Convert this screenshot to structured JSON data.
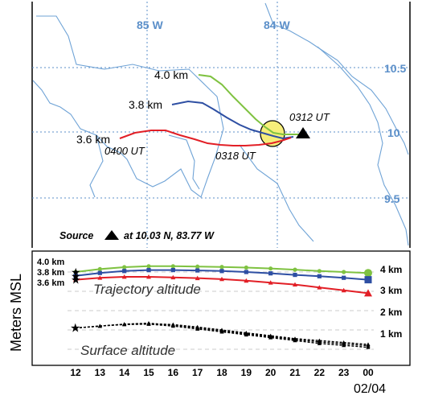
{
  "map": {
    "lon_labels": [
      "85 W",
      "84 W"
    ],
    "lat_labels": [
      "10.5",
      "10",
      "9.5"
    ],
    "trajectory_labels": {
      "green": "4.0 km",
      "blue": "3.8 km",
      "red": "3.6 km"
    },
    "time_labels": {
      "t0312": "0312 UT",
      "t0318": "0318 UT",
      "t0400": "0400 UT"
    },
    "source": {
      "prefix": "Source",
      "suffix": "at 10.03 N, 83.77 W",
      "marker_icon": "black-triangle"
    },
    "colors": {
      "green": "#7fc241",
      "blue": "#2e4fa3",
      "red": "#e21f26",
      "coast": "#6fa3d6",
      "grid": "#5b8fc9",
      "highlight": "#f6ee7a"
    }
  },
  "profile": {
    "y_axis_title": "Meters MSL",
    "trajectory_title": "Trajectory altitude",
    "surface_title": "Surface altitude",
    "left_labels": [
      "4.0 km",
      "3.8 km",
      "3.6 km"
    ],
    "right_labels": [
      "4 km",
      "3 km",
      "2 km",
      "1 km"
    ],
    "x_ticks": [
      "12",
      "13",
      "14",
      "15",
      "16",
      "17",
      "18",
      "19",
      "20",
      "21",
      "22",
      "23",
      "00"
    ],
    "date_label": "02/04"
  },
  "chart_data": {
    "type": "line",
    "x": [
      "12",
      "13",
      "14",
      "15",
      "16",
      "17",
      "18",
      "19",
      "20",
      "21",
      "22",
      "23",
      "00"
    ],
    "ylim": [
      0,
      4.5
    ],
    "series": [
      {
        "name": "4.0 km",
        "color": "#7fc241",
        "values": [
          4.0,
          4.15,
          4.25,
          4.3,
          4.3,
          4.28,
          4.26,
          4.23,
          4.18,
          4.12,
          4.05,
          4.0,
          3.95
        ]
      },
      {
        "name": "3.8 km",
        "color": "#2e4fa3",
        "values": [
          3.8,
          3.95,
          4.05,
          4.1,
          4.1,
          4.08,
          4.05,
          4.0,
          3.93,
          3.85,
          3.78,
          3.7,
          3.6
        ]
      },
      {
        "name": "3.6 km",
        "color": "#e21f26",
        "values": [
          3.6,
          3.7,
          3.75,
          3.75,
          3.72,
          3.68,
          3.63,
          3.55,
          3.45,
          3.35,
          3.2,
          3.05,
          2.9
        ]
      }
    ],
    "surface_series": [
      {
        "values": [
          1.1,
          1.2,
          1.3,
          1.32,
          1.28,
          1.15,
          1.0,
          0.85,
          0.7,
          0.55,
          0.45,
          0.35,
          0.25
        ]
      },
      {
        "values": [
          1.1,
          1.2,
          1.3,
          1.35,
          1.25,
          1.1,
          0.95,
          0.8,
          0.65,
          0.5,
          0.38,
          0.28,
          0.18
        ]
      },
      {
        "values": [
          1.1,
          1.2,
          1.28,
          1.3,
          1.2,
          1.05,
          0.9,
          0.75,
          0.6,
          0.45,
          0.3,
          0.2,
          0.1
        ]
      }
    ]
  }
}
